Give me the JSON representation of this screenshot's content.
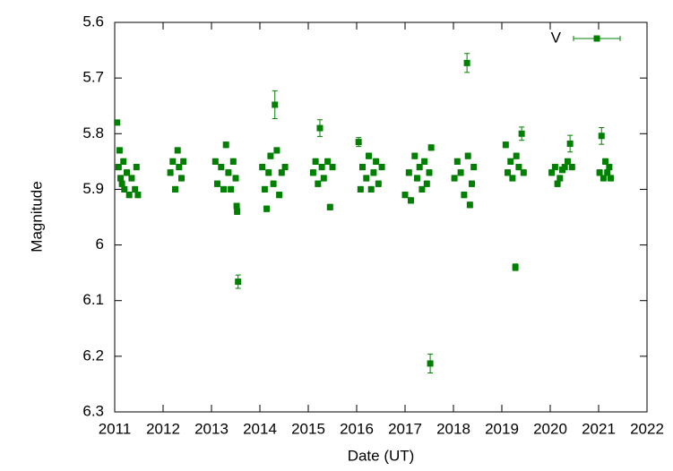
{
  "chart_data": {
    "type": "scatter",
    "xlabel": "Date (UT)",
    "ylabel": "Magnitude",
    "xlim": [
      2011,
      2022
    ],
    "xticks": [
      2011,
      2012,
      2013,
      2014,
      2015,
      2016,
      2017,
      2018,
      2019,
      2020,
      2021,
      2022
    ],
    "ylim": [
      5.6,
      6.3
    ],
    "yticks": [
      5.6,
      5.7,
      5.8,
      5.9,
      6,
      6.1,
      6.2,
      6.3
    ],
    "y_reversed": true,
    "grid": false,
    "legend": "upper right",
    "series": [
      {
        "name": "V",
        "color": "#008000",
        "x": [
          2011.08,
          2011.1,
          2011.12,
          2011.15,
          2011.18,
          2011.2,
          2011.25,
          2011.3,
          2011.35,
          2011.42,
          2011.45,
          2011.48,
          2011.05,
          2012.15,
          2012.2,
          2012.25,
          2012.3,
          2012.33,
          2012.38,
          2012.42,
          2013.08,
          2013.12,
          2013.2,
          2013.25,
          2013.3,
          2013.35,
          2013.4,
          2013.45,
          2013.5,
          2013.52,
          2013.53,
          2013.55,
          2014.05,
          2014.1,
          2014.14,
          2014.18,
          2014.22,
          2014.28,
          2014.31,
          2014.35,
          2014.4,
          2014.45,
          2014.52,
          2015.1,
          2015.15,
          2015.2,
          2015.24,
          2015.28,
          2015.32,
          2015.4,
          2015.45,
          2015.5,
          2016.04,
          2016.08,
          2016.12,
          2016.2,
          2016.25,
          2016.3,
          2016.35,
          2016.4,
          2016.45,
          2016.52,
          2017.0,
          2017.08,
          2017.12,
          2017.2,
          2017.25,
          2017.3,
          2017.35,
          2017.4,
          2017.45,
          2017.5,
          2017.52,
          2017.54,
          2018.02,
          2018.08,
          2018.15,
          2018.22,
          2018.28,
          2018.3,
          2018.34,
          2018.38,
          2018.42,
          2019.08,
          2019.12,
          2019.18,
          2019.22,
          2019.28,
          2019.3,
          2019.35,
          2019.41,
          2019.45,
          2020.03,
          2020.1,
          2020.15,
          2020.2,
          2020.25,
          2020.3,
          2020.36,
          2020.41,
          2020.45,
          2021.02,
          2021.06,
          2021.1,
          2021.14,
          2021.18,
          2021.22,
          2021.25
        ],
        "values": [
          5.86,
          5.83,
          5.88,
          5.89,
          5.85,
          5.9,
          5.87,
          5.91,
          5.88,
          5.9,
          5.86,
          5.91,
          5.78,
          5.87,
          5.85,
          5.9,
          5.83,
          5.86,
          5.88,
          5.85,
          5.85,
          5.89,
          5.86,
          5.9,
          5.82,
          5.87,
          5.9,
          5.85,
          5.88,
          5.93,
          5.94,
          6.066,
          5.86,
          5.9,
          5.935,
          5.87,
          5.84,
          5.89,
          5.748,
          5.83,
          5.91,
          5.87,
          5.86,
          5.87,
          5.85,
          5.89,
          5.79,
          5.86,
          5.88,
          5.85,
          5.932,
          5.86,
          5.815,
          5.9,
          5.86,
          5.88,
          5.84,
          5.9,
          5.87,
          5.85,
          5.89,
          5.86,
          5.91,
          5.87,
          5.92,
          5.84,
          5.88,
          5.86,
          5.9,
          5.85,
          5.89,
          5.87,
          6.213,
          5.825,
          5.88,
          5.85,
          5.87,
          5.91,
          5.673,
          5.84,
          5.928,
          5.89,
          5.86,
          5.82,
          5.87,
          5.85,
          5.88,
          6.04,
          5.84,
          5.86,
          5.8,
          5.87,
          5.87,
          5.86,
          5.89,
          5.88,
          5.865,
          5.86,
          5.85,
          5.818,
          5.86,
          5.87,
          5.804,
          5.88,
          5.85,
          5.87,
          5.86,
          5.88
        ],
        "errors": [
          0.005,
          0.005,
          0.005,
          0.005,
          0.005,
          0.005,
          0.005,
          0.005,
          0.005,
          0.005,
          0.005,
          0.005,
          0.004,
          0.005,
          0.005,
          0.005,
          0.005,
          0.005,
          0.005,
          0.005,
          0.005,
          0.005,
          0.005,
          0.005,
          0.005,
          0.005,
          0.005,
          0.005,
          0.005,
          0.005,
          0.005,
          0.012,
          0.005,
          0.005,
          0.005,
          0.005,
          0.005,
          0.005,
          0.025,
          0.005,
          0.005,
          0.005,
          0.005,
          0.005,
          0.005,
          0.005,
          0.015,
          0.005,
          0.005,
          0.005,
          0.005,
          0.005,
          0.008,
          0.005,
          0.005,
          0.005,
          0.005,
          0.005,
          0.005,
          0.005,
          0.005,
          0.005,
          0.005,
          0.005,
          0.005,
          0.005,
          0.005,
          0.005,
          0.005,
          0.005,
          0.005,
          0.005,
          0.017,
          0.005,
          0.005,
          0.005,
          0.005,
          0.005,
          0.017,
          0.005,
          0.005,
          0.005,
          0.005,
          0.005,
          0.005,
          0.005,
          0.005,
          0.006,
          0.005,
          0.005,
          0.012,
          0.005,
          0.005,
          0.005,
          0.005,
          0.005,
          0.005,
          0.005,
          0.005,
          0.015,
          0.005,
          0.005,
          0.015,
          0.005,
          0.005,
          0.005,
          0.005,
          0.005
        ]
      }
    ]
  }
}
